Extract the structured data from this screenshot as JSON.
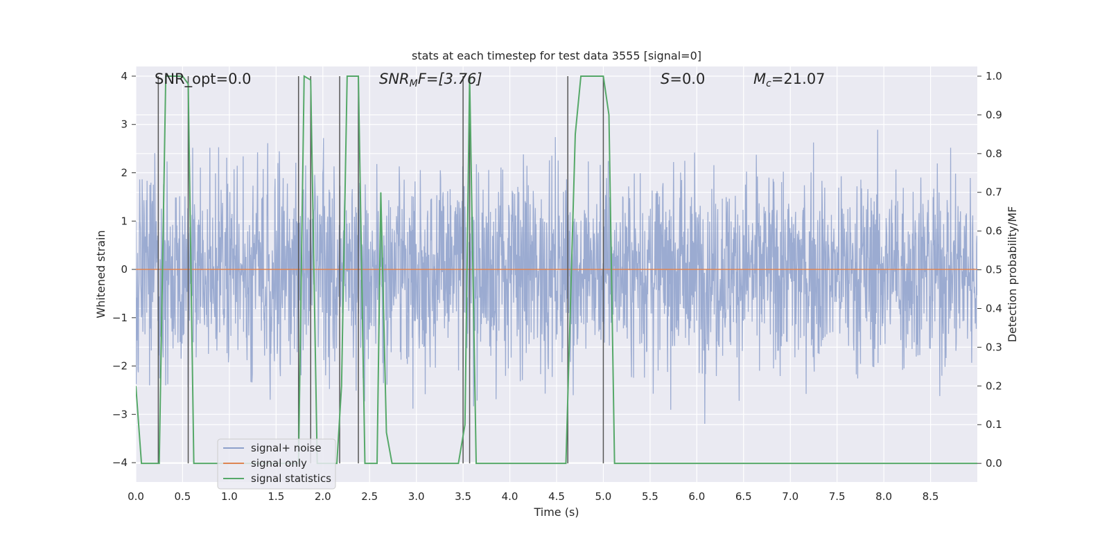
{
  "chart_data": {
    "type": "line",
    "title": "stats at each timestep for test data 3555 [signal=0]",
    "xlabel": "Time (s)",
    "ylabel_left": "Whitened strain",
    "ylabel_right": "Detection probability/MF",
    "xlim": [
      0.0,
      9.0
    ],
    "ylim_left": [
      -4.4,
      4.2
    ],
    "ylim_right": [
      -0.048,
      1.025
    ],
    "x_ticks": [
      "0.0",
      "0.5",
      "1.0",
      "1.5",
      "2.0",
      "2.5",
      "3.0",
      "3.5",
      "4.0",
      "4.5",
      "5.0",
      "5.5",
      "6.0",
      "6.5",
      "7.0",
      "7.5",
      "8.0",
      "8.5"
    ],
    "y_ticks_left": [
      "−4",
      "−3",
      "−2",
      "−1",
      "0",
      "1",
      "2",
      "3",
      "4"
    ],
    "y_ticks_right": [
      "0.0",
      "0.1",
      "0.2",
      "0.3",
      "0.4",
      "0.5",
      "0.6",
      "0.7",
      "0.8",
      "0.9",
      "1.0"
    ],
    "grid": true,
    "legend_placement": "lower-left",
    "annotations": {
      "snr_opt": "SNR_opt=0.0",
      "snr_mf_base": "SNR",
      "snr_mf_sub": "M",
      "snr_mf_rest": "F=[3.76]",
      "s_base": "S",
      "s_rest": "=0.0",
      "mc_base": "M",
      "mc_sub": "c",
      "mc_rest": "=21.07"
    },
    "series": [
      {
        "name": "signal+ noise",
        "color": "#8da0cb",
        "axis": "left",
        "description_note": "dense whitened noise, envelope approx ±1.5 with peaks to ±3.6",
        "envelope": 1.5,
        "peak": 3.6
      },
      {
        "name": "signal only",
        "color": "#dd8452",
        "axis": "left",
        "x": [
          0.0,
          9.0
        ],
        "y": [
          0.0,
          0.0
        ]
      },
      {
        "name": "signal statistics",
        "color": "#55a868",
        "axis": "right",
        "x": [
          0.0,
          0.06,
          0.25,
          0.32,
          0.4,
          0.5,
          0.56,
          0.62,
          0.75,
          1.55,
          1.74,
          1.8,
          1.87,
          1.94,
          2.0,
          2.15,
          2.2,
          2.26,
          2.38,
          2.45,
          2.58,
          2.62,
          2.68,
          2.74,
          3.45,
          3.52,
          3.57,
          3.64,
          3.7,
          4.6,
          4.7,
          4.76,
          5.0,
          5.06,
          5.12,
          9.0
        ],
        "y": [
          0.2,
          0.0,
          0.0,
          1.0,
          1.0,
          1.0,
          0.98,
          0.0,
          0.0,
          0.0,
          0.0,
          1.0,
          0.99,
          0.0,
          0.0,
          0.0,
          0.2,
          1.0,
          1.0,
          0.0,
          0.0,
          0.7,
          0.08,
          0.0,
          0.0,
          0.1,
          1.0,
          0.0,
          0.0,
          0.0,
          0.85,
          1.0,
          1.0,
          0.9,
          0.0,
          0.0
        ]
      }
    ],
    "vlines_x": [
      0.24,
      0.56,
      1.74,
      1.87,
      2.18,
      2.38,
      3.5,
      3.57,
      4.62,
      5.0
    ]
  }
}
